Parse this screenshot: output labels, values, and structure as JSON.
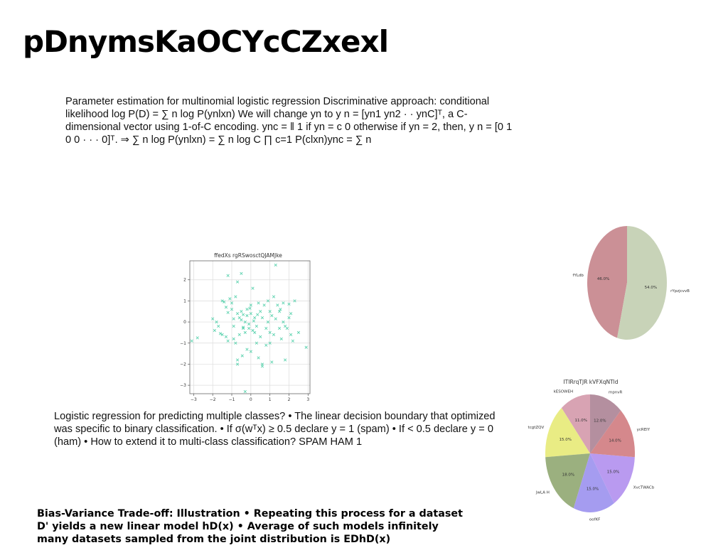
{
  "page": {
    "title": "pDnymsKaOCYcCZxexl"
  },
  "blocks": {
    "estimation_text": "Parameter estimation for multinomial logistic regression Discriminative approach: conditional likelihood log P(D) = ∑ n log P(ynlxn) We will change yn to y n = [yn1 yn2 · · ynC]ᵀ, a C-dimensional vector using 1-of-C encoding. ync = ‖ 1 if yn = c 0 otherwise if yn = 2, then, y n = [0 1 0 0 · · · 0]ᵀ. ⇒ ∑ n log P(ynlxn) = ∑ n log C ∏ c=1 P(clxn)ync = ∑ n",
    "logistic_text": "Logistic regression for predicting multiple classes? • The linear decision boundary that optimized was specific to binary classification. • If σ(wᵀx) ≥ 0.5 declare y = 1 (spam) • If < 0.5 declare y = 0 (ham) • How to extend it to multi-class classification? SPAM HAM 1",
    "bias_variance_text": "Bias-Variance Trade-off: Illustration • Repeating this process for a dataset D' yields a new linear model hD(x) • Average of such models infinitely many datasets sampled from the joint distribution is EDhD(x)"
  },
  "chart_data": [
    {
      "type": "scatter",
      "title": "ffedXs rgRSwosctQJAMJke",
      "xlim": [
        -3.2,
        3.1
      ],
      "ylim": [
        -3.4,
        2.9
      ],
      "xticks": [
        -3,
        -2,
        -1,
        0,
        1,
        2,
        3
      ],
      "yticks": [
        -3,
        -2,
        -1,
        0,
        1,
        2
      ],
      "xtick_labels": [
        "−3",
        "−2",
        "−1",
        "0",
        "1",
        "2",
        "3"
      ],
      "ytick_labels": [
        "−3",
        "−2",
        "−1",
        "0",
        "1",
        "2"
      ],
      "grid": true,
      "marker": "x",
      "color": "#5fd3b0",
      "points": [
        [
          -3.1,
          -0.9
        ],
        [
          -2.8,
          -0.75
        ],
        [
          -2.0,
          0.15
        ],
        [
          -1.9,
          -0.4
        ],
        [
          -1.8,
          0.0
        ],
        [
          -1.6,
          -0.55
        ],
        [
          -1.5,
          -0.6
        ],
        [
          -1.5,
          1.0
        ],
        [
          -1.4,
          0.95
        ],
        [
          -1.3,
          0.7
        ],
        [
          -1.3,
          -0.7
        ],
        [
          -1.2,
          2.2
        ],
        [
          -1.2,
          0.45
        ],
        [
          -1.2,
          -0.9
        ],
        [
          -1.1,
          1.1
        ],
        [
          -1.0,
          0.6
        ],
        [
          -1.0,
          0.9
        ],
        [
          -0.9,
          -0.2
        ],
        [
          -0.9,
          0.15
        ],
        [
          -0.8,
          1.2
        ],
        [
          -0.8,
          -1.0
        ],
        [
          -0.7,
          0.4
        ],
        [
          -0.7,
          1.9
        ],
        [
          -0.7,
          -2.0
        ],
        [
          -0.7,
          -1.8
        ],
        [
          -0.6,
          0.2
        ],
        [
          -0.6,
          -0.6
        ],
        [
          -0.5,
          0.5
        ],
        [
          -0.5,
          0.1
        ],
        [
          -0.5,
          2.3
        ],
        [
          -0.4,
          0.35
        ],
        [
          -0.4,
          -0.3
        ],
        [
          -0.4,
          -0.25
        ],
        [
          -0.3,
          0.0
        ],
        [
          -0.3,
          -0.5
        ],
        [
          -0.3,
          -3.3
        ],
        [
          -0.2,
          0.3
        ],
        [
          -0.2,
          0.6
        ],
        [
          -0.2,
          -1.3
        ],
        [
          -0.1,
          -0.3
        ],
        [
          -0.1,
          -0.1
        ],
        [
          0.0,
          0.4
        ],
        [
          0.0,
          0.8
        ],
        [
          0.0,
          -1.4
        ],
        [
          0.1,
          -0.4
        ],
        [
          0.1,
          1.6
        ],
        [
          0.2,
          -0.5
        ],
        [
          0.2,
          0.2
        ],
        [
          0.3,
          -0.2
        ],
        [
          0.3,
          -1.0
        ],
        [
          0.4,
          0.9
        ],
        [
          0.4,
          -1.7
        ],
        [
          0.5,
          0.5
        ],
        [
          0.5,
          -0.7
        ],
        [
          0.6,
          0.2
        ],
        [
          0.6,
          -2.0
        ],
        [
          0.6,
          -2.1
        ],
        [
          0.7,
          0.8
        ],
        [
          0.8,
          -0.3
        ],
        [
          0.8,
          -1.1
        ],
        [
          0.9,
          1.0
        ],
        [
          0.9,
          0.0
        ],
        [
          1.0,
          0.5
        ],
        [
          1.0,
          -0.5
        ],
        [
          1.0,
          -1.0
        ],
        [
          1.1,
          0.3
        ],
        [
          1.1,
          -1.9
        ],
        [
          1.2,
          1.2
        ],
        [
          1.2,
          -0.6
        ],
        [
          1.3,
          2.7
        ],
        [
          1.3,
          0.15
        ],
        [
          1.4,
          0.8
        ],
        [
          1.5,
          -0.3
        ],
        [
          1.5,
          0.5
        ],
        [
          1.6,
          -0.8
        ],
        [
          1.7,
          0.0
        ],
        [
          1.7,
          0.9
        ],
        [
          1.8,
          -0.2
        ],
        [
          1.8,
          -1.8
        ],
        [
          1.9,
          -0.3
        ],
        [
          2.0,
          0.2
        ],
        [
          2.0,
          0.85
        ],
        [
          2.1,
          -0.6
        ],
        [
          2.1,
          0.4
        ],
        [
          2.2,
          -0.9
        ],
        [
          2.3,
          1.0
        ],
        [
          2.5,
          -0.5
        ],
        [
          2.9,
          -1.2
        ],
        [
          -0.9,
          -0.8
        ],
        [
          0.15,
          0.05
        ],
        [
          -0.05,
          0.65
        ],
        [
          0.35,
          0.35
        ],
        [
          -1.7,
          -0.2
        ],
        [
          1.55,
          0.6
        ],
        [
          -0.45,
          -1.6
        ]
      ]
    },
    {
      "type": "pie",
      "title": "",
      "slices": [
        {
          "label": "fYLdb",
          "value": 46.0,
          "pct_label": "46.0%",
          "color": "#cb9096"
        },
        {
          "label": "rYpzjcvvBP",
          "value": 54.0,
          "pct_label": "54.0%",
          "color": "#c8d3b8"
        }
      ]
    },
    {
      "type": "pie",
      "title": "ITIRrqTJR kVFXqNTld",
      "slices": [
        {
          "label": "kESOWEH",
          "value": 11.0,
          "pct_label": "11.0%",
          "color": "#d8a3b3"
        },
        {
          "label": "tcgtZQV",
          "value": 15.0,
          "pct_label": "15.0%",
          "color": "#e9ec84"
        },
        {
          "label": "JwLA H",
          "value": 18.0,
          "pct_label": "18.0%",
          "color": "#9bb07f"
        },
        {
          "label": "oofKF",
          "value": 15.0,
          "pct_label": "15.0%",
          "color": "#a59cf0"
        },
        {
          "label": "XvcTWACb",
          "value": 15.0,
          "pct_label": "15.0%",
          "color": "#b99af0"
        },
        {
          "label": "ycREIY",
          "value": 14.0,
          "pct_label": "14.0%",
          "color": "#d5888c"
        },
        {
          "label": "mpnvR",
          "value": 12.0,
          "pct_label": "12.0%",
          "color": "#b48f9f"
        }
      ]
    }
  ]
}
